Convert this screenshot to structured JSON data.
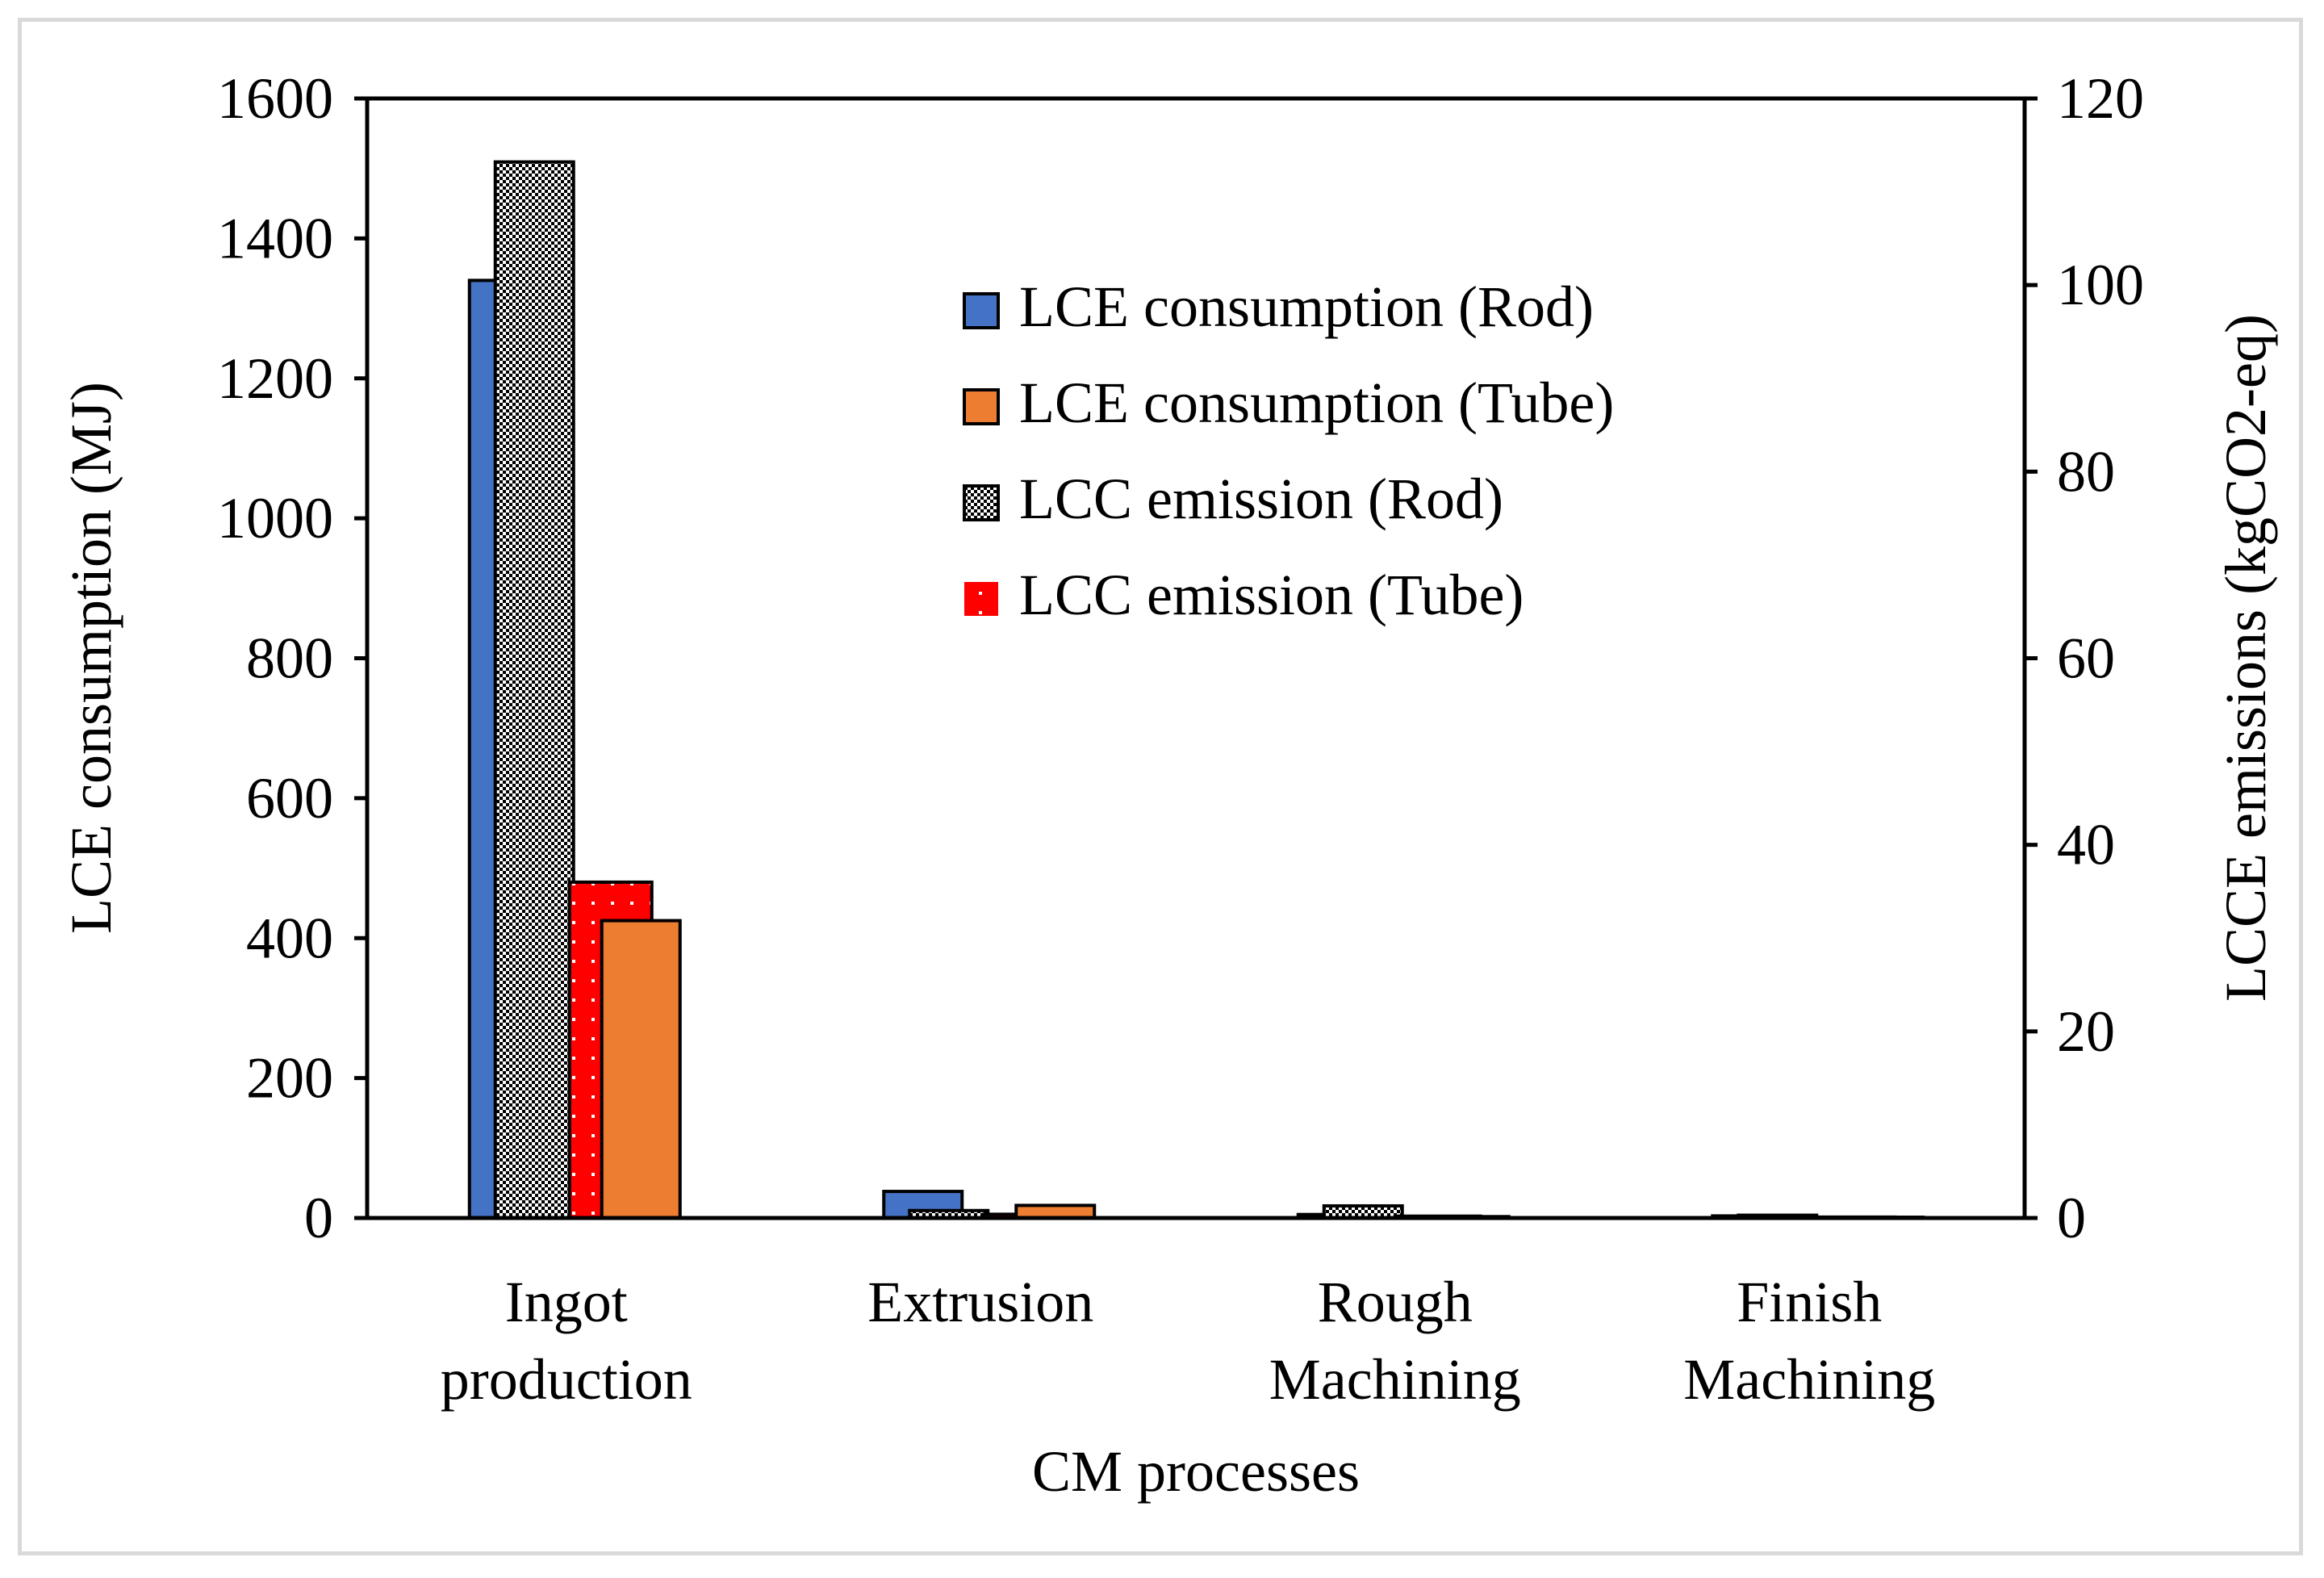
{
  "chart_data": {
    "type": "bar",
    "title": "",
    "xlabel": "CM processes",
    "ylabel_left": "LCE consumption (MJ)",
    "ylabel_right": "LCCE emissions (kgCO2-eq)",
    "ylim_left": [
      0,
      1600
    ],
    "ylim_right": [
      0,
      120
    ],
    "yticks_left": [
      "0",
      "200",
      "400",
      "600",
      "800",
      "1000",
      "1200",
      "1400",
      "1600"
    ],
    "yticks_right": [
      "0",
      "20",
      "40",
      "60",
      "80",
      "100",
      "120"
    ],
    "categories": [
      [
        "Ingot",
        "production"
      ],
      [
        "Extrusion"
      ],
      [
        "Rough",
        "Machining"
      ],
      [
        "Finish",
        "Machining"
      ]
    ],
    "grid": false,
    "legend_position": "top-center",
    "series": [
      {
        "name": "LCE consumption (Rod)",
        "axis": "left",
        "color": "#4472c4",
        "pattern": "solid",
        "values": [
          1340,
          38,
          5,
          3
        ]
      },
      {
        "name": "LCE consumption (Tube)",
        "axis": "left",
        "color": "#ed7d31",
        "pattern": "solid",
        "values": [
          425,
          18,
          2,
          1
        ]
      },
      {
        "name": "LCC emission (Rod)",
        "axis": "right",
        "color": "#000000",
        "pattern": "checker",
        "values": [
          113.2,
          0.8,
          1.3,
          0.3
        ]
      },
      {
        "name": "LCC emission (Tube)",
        "axis": "right",
        "color": "#ff0000",
        "pattern": "dots",
        "values": [
          36,
          0.4,
          0.2,
          0.1
        ]
      }
    ]
  }
}
